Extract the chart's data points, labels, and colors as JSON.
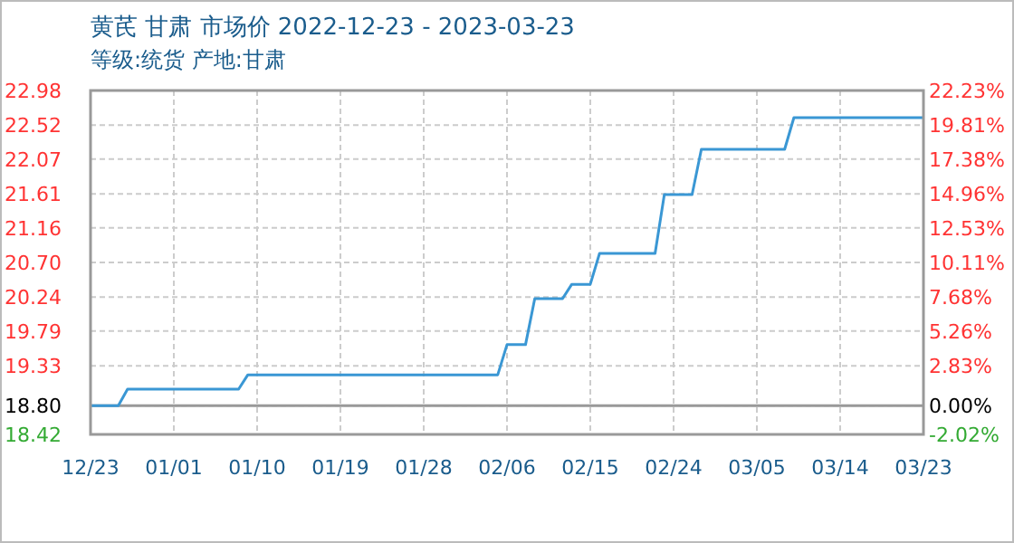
{
  "chart_data": {
    "type": "line",
    "title": "黄芪 甘肃 市场价 2022-12-23 - 2023-03-23",
    "subtitle": "等级:统货 产地:甘肃",
    "x": [
      "2022-12-23",
      "2022-12-26",
      "2022-12-27",
      "2023-01-08",
      "2023-01-09",
      "2023-02-05",
      "2023-02-06",
      "2023-02-08",
      "2023-02-09",
      "2023-02-12",
      "2023-02-13",
      "2023-02-15",
      "2023-02-16",
      "2023-02-22",
      "2023-02-23",
      "2023-02-26",
      "2023-02-27",
      "2023-03-08",
      "2023-03-09",
      "2023-03-23"
    ],
    "series": [
      {
        "color": "#3a97d4",
        "values": [
          18.8,
          18.8,
          19.02,
          19.02,
          19.21,
          19.21,
          19.61,
          19.61,
          20.22,
          20.22,
          20.41,
          20.41,
          20.82,
          20.82,
          21.6,
          21.6,
          22.2,
          22.2,
          22.62,
          22.62
        ]
      }
    ],
    "xlim": [
      "2022-12-23",
      "2023-03-23"
    ],
    "xticks": [
      {
        "value": "2022-12-23",
        "label": "12/23"
      },
      {
        "value": "2023-01-01",
        "label": "01/01"
      },
      {
        "value": "2023-01-10",
        "label": "01/10"
      },
      {
        "value": "2023-01-19",
        "label": "01/19"
      },
      {
        "value": "2023-01-28",
        "label": "01/28"
      },
      {
        "value": "2023-02-06",
        "label": "02/06"
      },
      {
        "value": "2023-02-15",
        "label": "02/15"
      },
      {
        "value": "2023-02-24",
        "label": "02/24"
      },
      {
        "value": "2023-03-05",
        "label": "03/05"
      },
      {
        "value": "2023-03-14",
        "label": "03/14"
      },
      {
        "value": "2023-03-23",
        "label": "03/23"
      }
    ],
    "ylim": [
      18.42,
      22.98
    ],
    "yticks": [
      {
        "value": 18.42,
        "label": "18.42"
      },
      {
        "value": 18.8,
        "label": "18.80"
      },
      19.33,
      19.79,
      20.24,
      {
        "value": 20.7,
        "label": "20.70"
      },
      21.16,
      21.61,
      22.07,
      22.52,
      22.98
    ],
    "y2lim": [
      -2.02,
      22.23
    ],
    "y2ticks": [
      {
        "value": -2.02,
        "label": "-2.02%"
      },
      {
        "value": 0,
        "label": "0.00%"
      },
      {
        "value": 2.83,
        "label": "2.83%"
      },
      {
        "value": 5.26,
        "label": "5.26%"
      },
      {
        "value": 7.68,
        "label": "7.68%"
      },
      {
        "value": 10.11,
        "label": "10.11%"
      },
      {
        "value": 12.53,
        "label": "12.53%"
      },
      {
        "value": 14.96,
        "label": "14.96%"
      },
      {
        "value": 17.38,
        "label": "17.38%"
      },
      {
        "value": 19.81,
        "label": "19.81%"
      },
      {
        "value": 22.23,
        "label": "22.23%"
      }
    ],
    "ref_lines": [
      {
        "axis": "y",
        "value": 18.8,
        "color": "#999999"
      }
    ],
    "grid": true,
    "line_style": "solid",
    "marker": "none"
  }
}
